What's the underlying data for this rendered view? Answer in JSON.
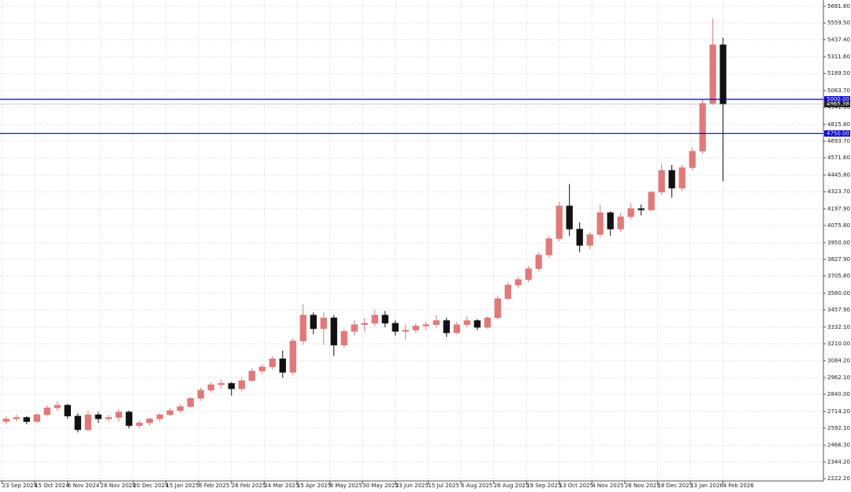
{
  "chart_data": {
    "type": "candlestick",
    "xlim": [
      -1,
      401
    ],
    "xticks": [
      {
        "value": 0,
        "label": "23 Sep 2024"
      },
      {
        "value": 16,
        "label": "15 Oct 2024"
      },
      {
        "value": 32,
        "label": "6 Nov 2024"
      },
      {
        "value": 48,
        "label": "28 Nov 2024"
      },
      {
        "value": 64,
        "label": "20 Dec 2024"
      },
      {
        "value": 80,
        "label": "15 Jan 2025"
      },
      {
        "value": 96,
        "label": "6 Feb 2025"
      },
      {
        "value": 112,
        "label": "28 Feb 2025"
      },
      {
        "value": 128,
        "label": "24 Mar 2025"
      },
      {
        "value": 144,
        "label": "15 Apr 2025"
      },
      {
        "value": 160,
        "label": "8 May 2025"
      },
      {
        "value": 176,
        "label": "30 May 2025"
      },
      {
        "value": 192,
        "label": "23 Jun 2025"
      },
      {
        "value": 208,
        "label": "15 Jul 2025"
      },
      {
        "value": 224,
        "label": "6 Aug 2025"
      },
      {
        "value": 240,
        "label": "28 Aug 2025"
      },
      {
        "value": 256,
        "label": "19 Sep 2025"
      },
      {
        "value": 272,
        "label": "13 Oct 2025"
      },
      {
        "value": 288,
        "label": "4 Nov 2025"
      },
      {
        "value": 304,
        "label": "26 Nov 2025"
      },
      {
        "value": 320,
        "label": "18 Dec 2025"
      },
      {
        "value": 336,
        "label": "13 Jan 2026"
      },
      {
        "value": 352,
        "label": "4 Feb 2026"
      }
    ],
    "ylim": [
      2222.2,
      5681.6
    ],
    "yticks": [
      {
        "value": 5681.6,
        "label": "5681.60"
      },
      {
        "value": 5559.5,
        "label": "5559.50"
      },
      {
        "value": 5437.4,
        "label": "5437.40"
      },
      {
        "value": 5311.6,
        "label": "5311.60"
      },
      {
        "value": 5189.5,
        "label": "5189.50"
      },
      {
        "value": 5063.7,
        "label": "5063.70"
      },
      {
        "value": 4941.6,
        "label": "4941.60"
      },
      {
        "value": 4815.8,
        "label": "4815.80"
      },
      {
        "value": 4693.7,
        "label": "4693.70"
      },
      {
        "value": 4571.6,
        "label": "4571.60"
      },
      {
        "value": 4445.8,
        "label": "4445.80"
      },
      {
        "value": 4323.7,
        "label": "4323.70"
      },
      {
        "value": 4197.9,
        "label": "4197.90"
      },
      {
        "value": 4075.8,
        "label": "4075.80"
      },
      {
        "value": 3950,
        "label": "3950.00"
      },
      {
        "value": 3827.9,
        "label": "3827.90"
      },
      {
        "value": 3705.8,
        "label": "3705.80"
      },
      {
        "value": 3580,
        "label": "3580.00"
      },
      {
        "value": 3457.9,
        "label": "3457.90"
      },
      {
        "value": 3332.1,
        "label": "3332.10"
      },
      {
        "value": 3210,
        "label": "3210.00"
      },
      {
        "value": 3084.2,
        "label": "3084.20"
      },
      {
        "value": 2962.1,
        "label": "2962.10"
      },
      {
        "value": 2840,
        "label": "2840.00"
      },
      {
        "value": 2714.2,
        "label": "2714.20"
      },
      {
        "value": 2592.1,
        "label": "2592.10"
      },
      {
        "value": 2466.3,
        "label": "2466.30"
      },
      {
        "value": 2344.2,
        "label": "2344.20"
      },
      {
        "value": 2222.2,
        "label": "2222.20"
      }
    ],
    "grid": true,
    "up_color": "#e07a7a",
    "down_color": "#111111",
    "level_color": "#0000cc",
    "price_color": "#222222",
    "levels": [
      {
        "value": 5000,
        "label": "5000.00"
      },
      {
        "value": 4750,
        "label": "4750.00"
      }
    ],
    "current_price": {
      "value": 4965.38,
      "label": "4965.38"
    },
    "candles": {
      "x": [
        2,
        7,
        12,
        17,
        22,
        27,
        32,
        37,
        42,
        47,
        52,
        57,
        62,
        67,
        72,
        77,
        82,
        87,
        92,
        97,
        102,
        107,
        112,
        117,
        122,
        127,
        132,
        137,
        142,
        147,
        152,
        157,
        162,
        167,
        172,
        177,
        182,
        187,
        192,
        197,
        202,
        207,
        212,
        217,
        222,
        227,
        232,
        237,
        242,
        247,
        252,
        257,
        262,
        267,
        272,
        277,
        282,
        287,
        292,
        297,
        302,
        307,
        312,
        317,
        322,
        327,
        332,
        337,
        342,
        347,
        352
      ],
      "open": [
        2640,
        2660,
        2670,
        2640,
        2690,
        2740,
        2760,
        2680,
        2580,
        2690,
        2660,
        2670,
        2710,
        2610,
        2630,
        2660,
        2690,
        2720,
        2750,
        2810,
        2870,
        2910,
        2920,
        2880,
        2940,
        3010,
        3040,
        3100,
        3000,
        3230,
        3420,
        3320,
        3400,
        3200,
        3300,
        3350,
        3360,
        3420,
        3360,
        3300,
        3310,
        3340,
        3350,
        3380,
        3290,
        3350,
        3380,
        3330,
        3400,
        3540,
        3640,
        3680,
        3760,
        3860,
        3980,
        4220,
        4050,
        3930,
        4010,
        4170,
        4050,
        4140,
        4200,
        4190,
        4320,
        4480,
        4350,
        4500,
        4620,
        4970,
        5400
      ],
      "high": [
        2680,
        2690,
        2680,
        2700,
        2760,
        2790,
        2770,
        2700,
        2720,
        2710,
        2690,
        2730,
        2720,
        2650,
        2670,
        2700,
        2740,
        2770,
        2820,
        2890,
        2930,
        2950,
        2930,
        2960,
        3030,
        3060,
        3120,
        3160,
        3250,
        3500,
        3440,
        3440,
        3420,
        3320,
        3380,
        3400,
        3460,
        3450,
        3380,
        3350,
        3360,
        3370,
        3420,
        3400,
        3370,
        3410,
        3390,
        3410,
        3560,
        3660,
        3700,
        3780,
        3880,
        4000,
        4250,
        4380,
        4100,
        4030,
        4230,
        4180,
        4170,
        4240,
        4230,
        4330,
        4530,
        4520,
        4520,
        4650,
        5000,
        5590,
        5450
      ],
      "low": [
        2620,
        2640,
        2620,
        2630,
        2680,
        2720,
        2660,
        2560,
        2570,
        2630,
        2640,
        2640,
        2590,
        2590,
        2610,
        2640,
        2680,
        2700,
        2740,
        2790,
        2850,
        2880,
        2830,
        2860,
        2930,
        2990,
        3020,
        2960,
        2980,
        3200,
        3280,
        3200,
        3120,
        3180,
        3270,
        3300,
        3340,
        3330,
        3270,
        3240,
        3290,
        3310,
        3330,
        3260,
        3280,
        3330,
        3310,
        3320,
        3390,
        3530,
        3620,
        3660,
        3740,
        3840,
        3960,
        4000,
        3880,
        3900,
        3990,
        4000,
        4030,
        4120,
        4150,
        4180,
        4300,
        4280,
        4330,
        4480,
        4600,
        4960,
        4400
      ],
      "close": [
        2660,
        2670,
        2640,
        2690,
        2740,
        2760,
        2680,
        2580,
        2690,
        2660,
        2670,
        2710,
        2610,
        2630,
        2660,
        2690,
        2720,
        2750,
        2810,
        2870,
        2910,
        2920,
        2880,
        2940,
        3010,
        3040,
        3100,
        3000,
        3230,
        3420,
        3320,
        3400,
        3200,
        3300,
        3350,
        3360,
        3420,
        3360,
        3300,
        3310,
        3340,
        3350,
        3380,
        3290,
        3350,
        3380,
        3330,
        3400,
        3540,
        3640,
        3680,
        3760,
        3860,
        3980,
        4220,
        4050,
        3930,
        4010,
        4170,
        4050,
        4140,
        4200,
        4190,
        4320,
        4480,
        4350,
        4500,
        4620,
        4970,
        5400,
        4965.38
      ]
    }
  }
}
